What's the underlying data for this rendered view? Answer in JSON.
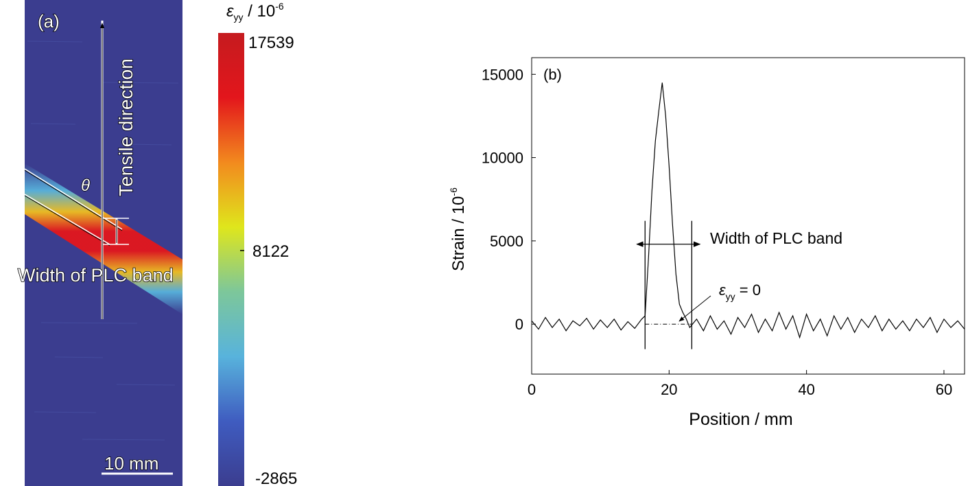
{
  "panel_a": {
    "label": "(a)",
    "direction_label": "Tensile direction",
    "angle_label": "θ",
    "width_label": "Width of PLC band",
    "scale_bar_label": "10 mm",
    "colorbar": {
      "title_symbol": "ε",
      "title_sub": "yy",
      "title_rest": " / 10",
      "title_exp": "-6",
      "max": "17539",
      "mid": "8122",
      "min": "-2865",
      "colors": [
        "#3b3d8f",
        "#3f5cc0",
        "#58b3dc",
        "#7dc79a",
        "#dfe61c",
        "#f28a1e",
        "#e3161c",
        "#c51b1f"
      ]
    }
  },
  "panel_b": {
    "label": "(b)",
    "annotation_width": "Width of PLC band",
    "annotation_eps_symbol": "ε",
    "annotation_eps_sub": "yy",
    "annotation_eps_rest": " = 0",
    "xlabel": "Position / mm",
    "ylabel_main": "Strain / 10",
    "ylabel_exp": "-6"
  },
  "chart_data": {
    "type": "line",
    "xlabel": "Position / mm",
    "ylabel": "Strain / 10-6",
    "xlim": [
      0,
      63
    ],
    "ylim": [
      -3000,
      16000
    ],
    "xticks": [
      0,
      20,
      40,
      60
    ],
    "yticks": [
      0,
      5000,
      10000,
      15000
    ],
    "band_edges": [
      16.5,
      23.3
    ],
    "series": [
      {
        "x": [
          0,
          1,
          2,
          3,
          4,
          5,
          6,
          7,
          8,
          9,
          10,
          11,
          12,
          13,
          14,
          15,
          16,
          16.5,
          17,
          17.5,
          18,
          18.5,
          19,
          19.5,
          20,
          20.5,
          21,
          21.5,
          22,
          22.5,
          23,
          24,
          25,
          26,
          27,
          28,
          29,
          30,
          31,
          32,
          33,
          34,
          35,
          36,
          37,
          38,
          39,
          40,
          41,
          42,
          43,
          44,
          45,
          46,
          47,
          48,
          49,
          50,
          51,
          52,
          53,
          54,
          55,
          56,
          57,
          58,
          59,
          60,
          61,
          62,
          63
        ],
        "y": [
          200,
          -300,
          400,
          -200,
          300,
          -400,
          200,
          -100,
          350,
          -300,
          250,
          -200,
          300,
          -350,
          150,
          -250,
          300,
          500,
          4000,
          8000,
          11000,
          12800,
          14500,
          12500,
          9500,
          6000,
          3000,
          1200,
          700,
          300,
          -200,
          300,
          -400,
          500,
          -300,
          200,
          -600,
          400,
          -200,
          600,
          -500,
          300,
          -400,
          700,
          -300,
          500,
          -800,
          600,
          -400,
          300,
          -700,
          500,
          -300,
          400,
          -500,
          300,
          -200,
          500,
          -400,
          300,
          -300,
          200,
          -400,
          300,
          -200,
          400,
          -500,
          300,
          -200,
          200,
          -300
        ]
      }
    ]
  }
}
